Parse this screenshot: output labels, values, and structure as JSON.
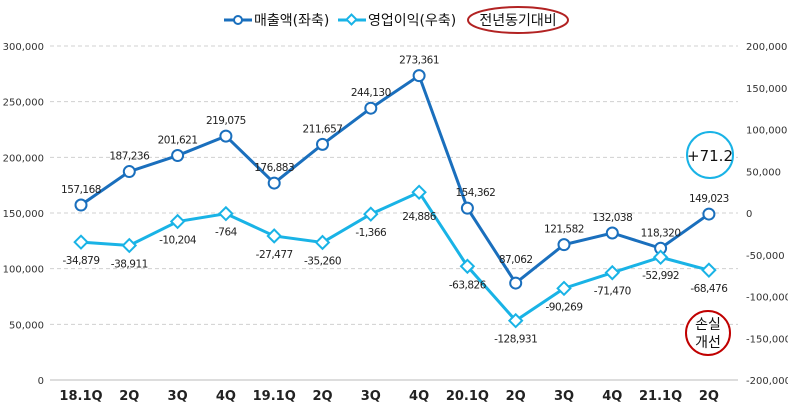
{
  "chart_data": {
    "type": "line",
    "title": "",
    "categories": [
      "18.1Q",
      "2Q",
      "3Q",
      "4Q",
      "19.1Q",
      "2Q",
      "3Q",
      "4Q",
      "20.1Q",
      "2Q",
      "3Q",
      "4Q",
      "21.1Q",
      "2Q"
    ],
    "series": [
      {
        "name": "매출액(좌축)",
        "axis": "left",
        "color": "#1a6fbd",
        "values": [
          157168,
          187236,
          201621,
          219075,
          176883,
          211657,
          244130,
          273361,
          154362,
          87062,
          121582,
          132038,
          118320,
          149023
        ],
        "labels": [
          "157,168",
          "187,236",
          "201,621",
          "219,075",
          "176,883",
          "211,657",
          "244,130",
          "273,361",
          "154,362",
          "87,062",
          "121,582",
          "132,038",
          "118,320",
          "149,023"
        ]
      },
      {
        "name": "영업이익(우축)",
        "axis": "right",
        "color": "#19b3e6",
        "values": [
          -34879,
          -38911,
          -10204,
          -764,
          -27477,
          -35260,
          -1366,
          24886,
          -63826,
          -128931,
          -90269,
          -71470,
          -52992,
          -68476
        ],
        "labels": [
          "-34,879",
          "-38,911",
          "-10,204",
          "-764",
          "-27,477",
          "-35,260",
          "-1,366",
          "24,886",
          "-63,826",
          "-128,931",
          "-90,269",
          "-71,470",
          "-52,992",
          "-68,476"
        ]
      }
    ],
    "left_axis": {
      "range": [
        0,
        300000
      ],
      "ticks": [
        "0",
        "50,000",
        "100,000",
        "150,000",
        "200,000",
        "250,000",
        "300,000"
      ]
    },
    "right_axis": {
      "range": [
        -200000,
        200000
      ],
      "ticks": [
        "-200,000",
        "-150,000",
        "-100,000",
        "-50,000",
        "0",
        "50,000",
        "100,000",
        "150,000",
        "200,000"
      ]
    },
    "legend": {
      "placement": "top",
      "extra": "전년동기대비"
    },
    "annotations": {
      "revenue_change": "+71.2",
      "profit_note_line1": "손실",
      "profit_note_line2": "개선"
    },
    "grid": true
  }
}
